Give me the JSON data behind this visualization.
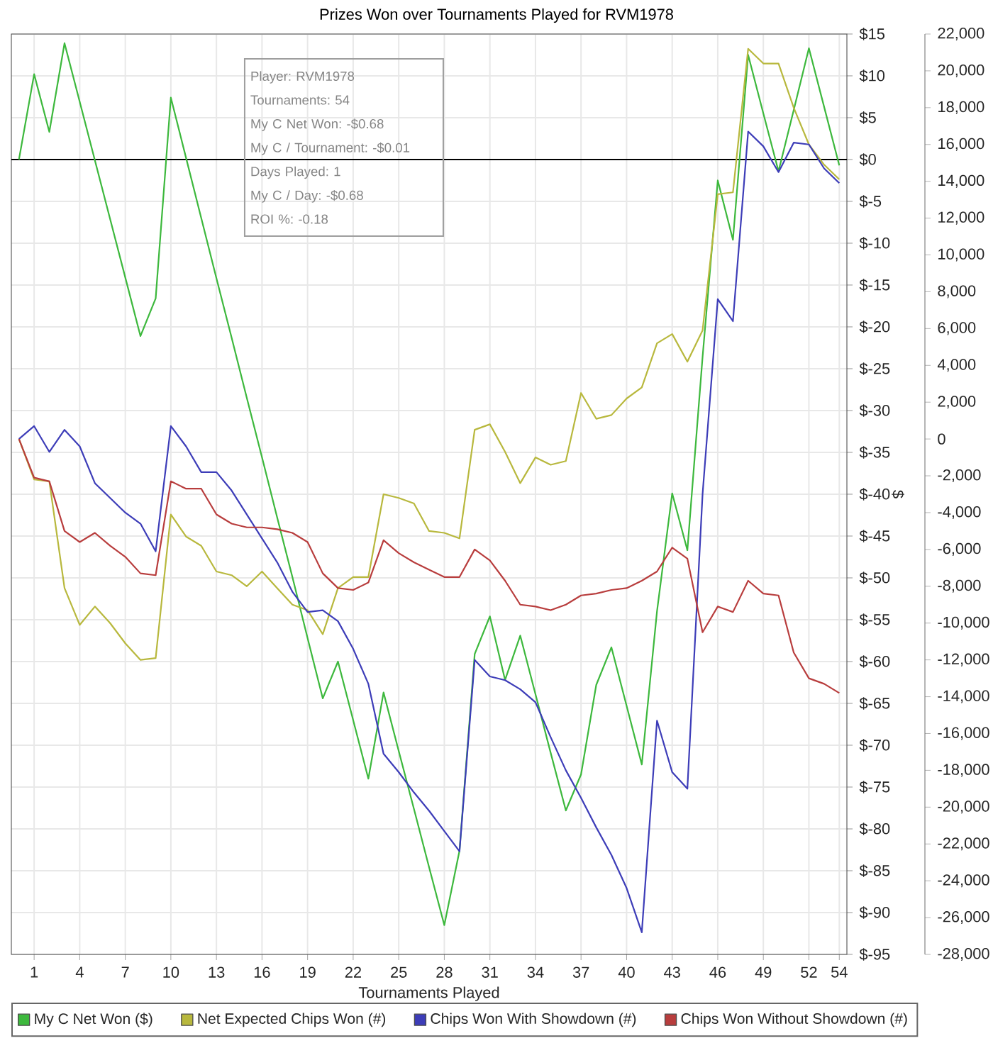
{
  "chart_data": {
    "type": "line",
    "title": "Prizes Won over Tournaments Played for RVM1978",
    "xlabel": "Tournaments Played",
    "ylabel": "$",
    "x": [
      0,
      1,
      2,
      3,
      4,
      5,
      6,
      7,
      8,
      9,
      10,
      11,
      12,
      13,
      14,
      15,
      16,
      17,
      18,
      19,
      20,
      21,
      22,
      23,
      24,
      25,
      26,
      27,
      28,
      29,
      30,
      31,
      32,
      33,
      34,
      35,
      36,
      37,
      38,
      39,
      40,
      41,
      42,
      43,
      44,
      45,
      46,
      47,
      48,
      49,
      50,
      51,
      52,
      53,
      54
    ],
    "xlim": [
      -0.5,
      54.5
    ],
    "xticks": [
      1,
      4,
      7,
      10,
      13,
      16,
      19,
      22,
      25,
      28,
      31,
      34,
      37,
      40,
      43,
      46,
      49,
      52,
      54
    ],
    "ylim": [
      -95,
      15
    ],
    "yticks": [
      {
        "value": 15,
        "label": "$15"
      },
      {
        "value": 10,
        "label": "$10"
      },
      {
        "value": 5,
        "label": "$5"
      },
      {
        "value": 0,
        "label": "$0"
      },
      {
        "value": -5,
        "label": "$-5"
      },
      {
        "value": -10,
        "label": "$-10"
      },
      {
        "value": -15,
        "label": "$-15"
      },
      {
        "value": -20,
        "label": "$-20"
      },
      {
        "value": -25,
        "label": "$-25"
      },
      {
        "value": -30,
        "label": "$-30"
      },
      {
        "value": -35,
        "label": "$-35"
      },
      {
        "value": -40,
        "label": "$-40"
      },
      {
        "value": -45,
        "label": "$-45"
      },
      {
        "value": -50,
        "label": "$-50"
      },
      {
        "value": -55,
        "label": "$-55"
      },
      {
        "value": -60,
        "label": "$-60"
      },
      {
        "value": -65,
        "label": "$-65"
      },
      {
        "value": -70,
        "label": "$-70"
      },
      {
        "value": -75,
        "label": "$-75"
      },
      {
        "value": -80,
        "label": "$-80"
      },
      {
        "value": -85,
        "label": "$-85"
      },
      {
        "value": -90,
        "label": "$-90"
      },
      {
        "value": -95,
        "label": "$-95"
      }
    ],
    "y2lim": [
      -28000,
      22000
    ],
    "y2ticks": [
      {
        "value": 22000,
        "label": "22,000"
      },
      {
        "value": 20000,
        "label": "20,000"
      },
      {
        "value": 18000,
        "label": "18,000"
      },
      {
        "value": 16000,
        "label": "16,000"
      },
      {
        "value": 14000,
        "label": "14,000"
      },
      {
        "value": 12000,
        "label": "12,000"
      },
      {
        "value": 10000,
        "label": "10,000"
      },
      {
        "value": 8000,
        "label": "8,000"
      },
      {
        "value": 6000,
        "label": "6,000"
      },
      {
        "value": 4000,
        "label": "4,000"
      },
      {
        "value": 2000,
        "label": "2,000"
      },
      0,
      {
        "value": -2000,
        "label": "-2,000"
      },
      {
        "value": -4000,
        "label": "-4,000"
      },
      {
        "value": -6000,
        "label": "-6,000"
      },
      {
        "value": -8000,
        "label": "-8,000"
      },
      {
        "value": -10000,
        "label": "-10,000"
      },
      {
        "value": -12000,
        "label": "-12,000"
      },
      {
        "value": -14000,
        "label": "-14,000"
      },
      {
        "value": -16000,
        "label": "-16,000"
      },
      {
        "value": -18000,
        "label": "-18,000"
      },
      {
        "value": -20000,
        "label": "-20,000"
      },
      {
        "value": -22000,
        "label": "-22,000"
      },
      {
        "value": -24000,
        "label": "-24,000"
      },
      {
        "value": -26000,
        "label": "-26,000"
      },
      {
        "value": -28000,
        "label": "-28,000"
      }
    ],
    "grid": true,
    "legend": "bottom",
    "ref_lines": [
      {
        "axis": "y",
        "value": 0,
        "color": "#000000"
      }
    ],
    "annotations": [
      "Player: RVM1978",
      "Tournaments: 54",
      "My C Net Won: -$0.68",
      "My C / Tournament: -$0.01",
      "Days Played: 1",
      "My C / Day: -$0.68",
      "ROI %: -0.18"
    ],
    "series": [
      {
        "name": "My C Net Won ($)",
        "color": "#3db83d",
        "values": [
          0,
          10.2,
          3.3,
          13.9,
          6.9,
          -0.1,
          -7.1,
          -14.1,
          -21.1,
          -16.6,
          7.4,
          0.2,
          -7.0,
          -14.2,
          -21.3,
          -28.5,
          -35.6,
          -42.8,
          -49.9,
          -57.2,
          -64.4,
          -60.0,
          -67.0,
          -74.0,
          -63.7,
          -70.7,
          -77.6,
          -84.6,
          -91.5,
          -82.6,
          -59.1,
          -54.6,
          -62.2,
          -56.9,
          -63.9,
          -70.9,
          -77.8,
          -73.5,
          -62.8,
          -58.3,
          -65.3,
          -72.3,
          -54.0,
          -39.9,
          -46.7,
          -23.6,
          -2.5,
          -9.6,
          12.5,
          5.5,
          -1.4,
          5.9,
          13.3,
          6.3,
          -0.7
        ]
      },
      {
        "name": "Net Expected Chips Won (#)",
        "color": "#b8b83d",
        "axis": "y2",
        "values": [
          0,
          -2200,
          -2300,
          -8100,
          -10100,
          -9100,
          -10000,
          -11100,
          -12000,
          -11900,
          -4100,
          -5300,
          -5800,
          -7200,
          -7400,
          -8000,
          -7200,
          -8100,
          -9000,
          -9300,
          -10600,
          -8100,
          -7500,
          -7500,
          -3000,
          -3200,
          -3500,
          -5000,
          -5100,
          -5400,
          500,
          800,
          -700,
          -2400,
          -1000,
          -1400,
          -1200,
          2500,
          1100,
          1300,
          2200,
          2800,
          5200,
          5700,
          4200,
          5900,
          13300,
          13400,
          21200,
          20400,
          20400,
          18000,
          16000,
          14900,
          14100
        ]
      },
      {
        "name": "Chips Won With Showdown (#)",
        "color": "#3d3db8",
        "axis": "y2",
        "values": [
          0,
          700,
          -700,
          500,
          -400,
          -2400,
          -3200,
          -4000,
          -4600,
          -6100,
          700,
          -400,
          -1800,
          -1800,
          -2800,
          -4100,
          -5400,
          -6700,
          -8300,
          -9400,
          -9300,
          -9900,
          -11400,
          -13300,
          -17100,
          -18100,
          -19200,
          -20200,
          -21300,
          -22400,
          -12000,
          -12900,
          -13100,
          -13600,
          -14300,
          -16200,
          -18000,
          -19500,
          -21100,
          -22600,
          -24400,
          -26800,
          -15300,
          -18100,
          -19000,
          -3000,
          7600,
          6400,
          16700,
          15900,
          14500,
          16100,
          16000,
          14700,
          13900
        ]
      },
      {
        "name": "Chips Won Without Showdown (#)",
        "color": "#b83d3d",
        "axis": "y2",
        "values": [
          0,
          -2100,
          -2300,
          -5000,
          -5600,
          -5100,
          -5800,
          -6400,
          -7300,
          -7400,
          -2300,
          -2700,
          -2700,
          -4100,
          -4600,
          -4800,
          -4800,
          -4900,
          -5100,
          -5600,
          -7300,
          -8100,
          -8200,
          -7800,
          -5500,
          -6200,
          -6700,
          -7100,
          -7500,
          -7500,
          -6000,
          -6600,
          -7700,
          -9000,
          -9100,
          -9300,
          -9000,
          -8500,
          -8400,
          -8200,
          -8100,
          -7700,
          -7200,
          -5900,
          -6500,
          -10500,
          -9100,
          -9400,
          -7700,
          -8400,
          -8500,
          -11600,
          -13000,
          -13300,
          -13800
        ]
      }
    ]
  }
}
